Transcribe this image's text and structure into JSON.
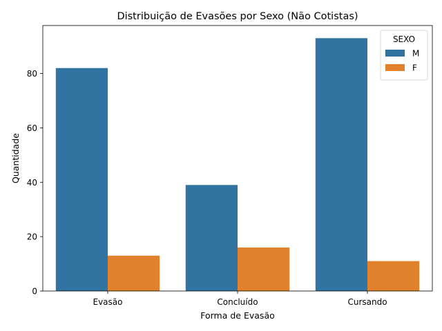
{
  "chart_data": {
    "type": "bar",
    "title": "Distribuição de Evasões por Sexo (Não Cotistas)",
    "xlabel": "Forma de Evasão",
    "ylabel": "Quantidade",
    "categories": [
      "Evasão",
      "Concluído",
      "Cursando"
    ],
    "series": [
      {
        "name": "M",
        "values": [
          82,
          39,
          93
        ],
        "color": "#3274a1"
      },
      {
        "name": "F",
        "values": [
          13,
          16,
          11
        ],
        "color": "#e1812c"
      }
    ],
    "ylim": [
      0,
      97.65
    ],
    "yticks": [
      0,
      20,
      40,
      60,
      80
    ],
    "legend": {
      "title": "SEXO",
      "placement": "top-right"
    },
    "grid": false
  }
}
